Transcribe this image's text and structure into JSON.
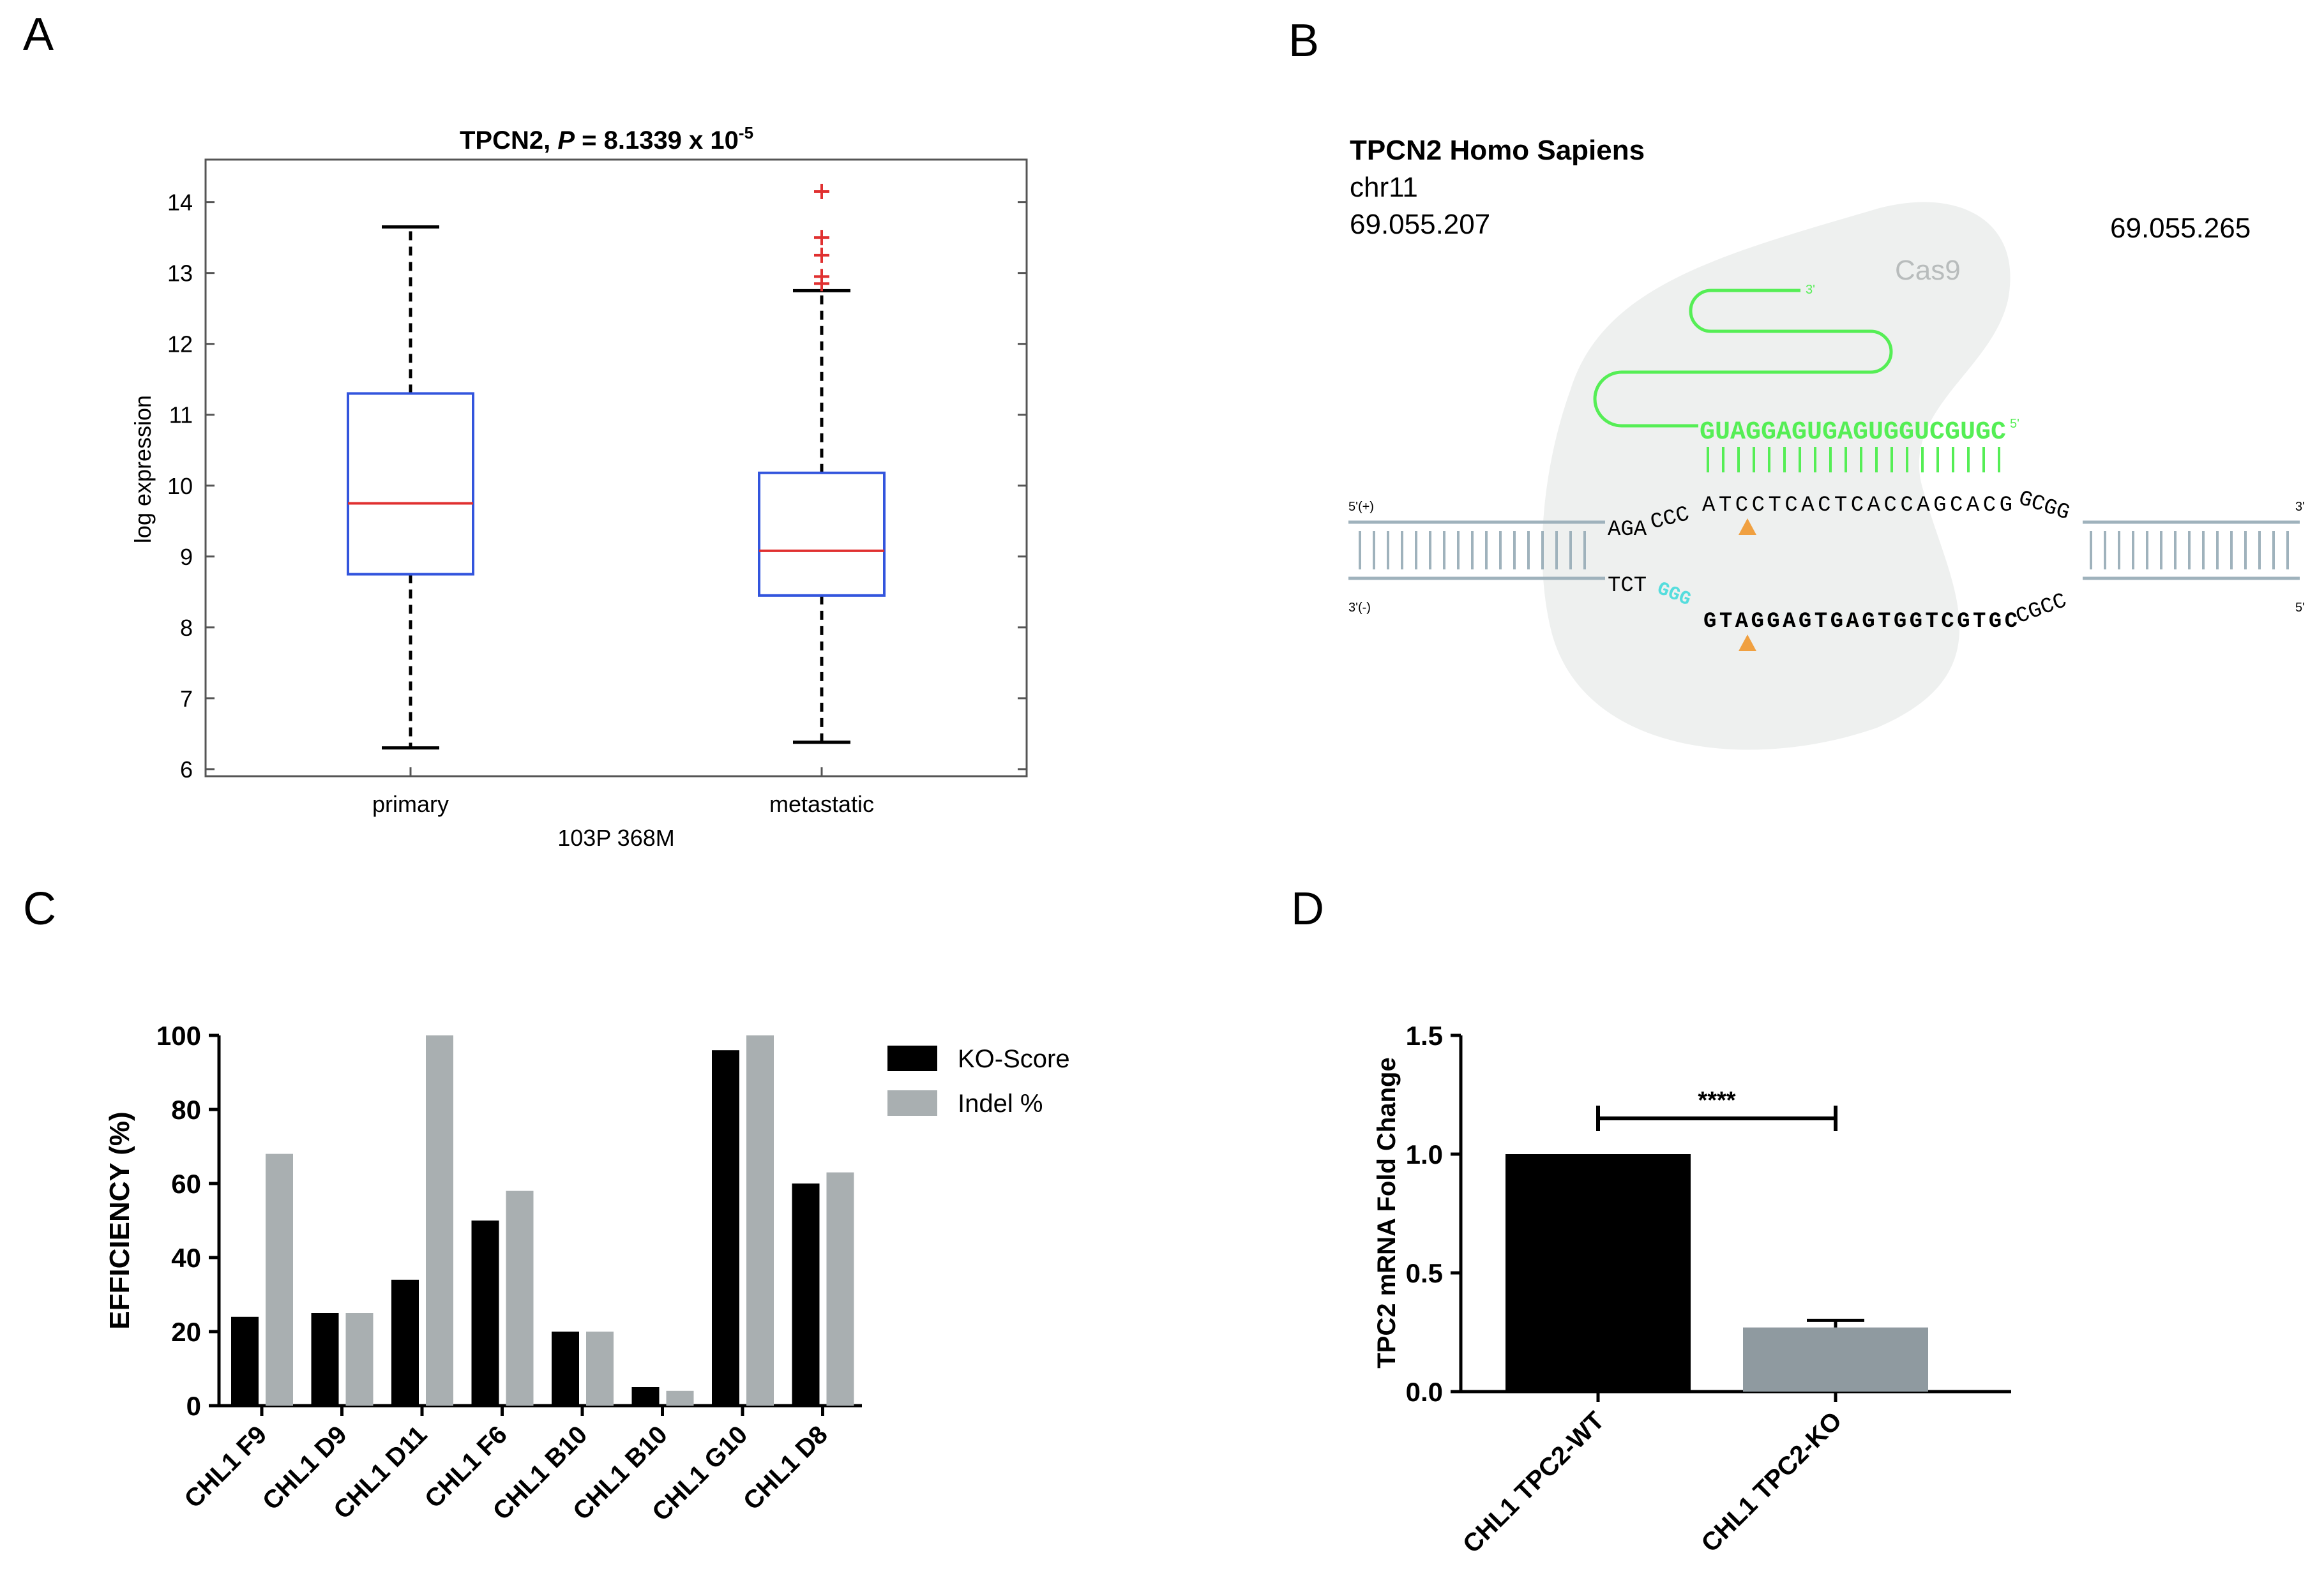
{
  "panels": {
    "a": {
      "letter": "A"
    },
    "b": {
      "letter": "B"
    },
    "c": {
      "letter": "C"
    },
    "d": {
      "letter": "D"
    }
  },
  "chart_data": [
    {
      "type": "box",
      "title_prefix": "TPCN2, ",
      "title_p": "P",
      "title_value": " = 8.1339 x 10",
      "title_exp": "-5",
      "ylabel": "log expression",
      "xlabel": "103P 368M",
      "ylim": [
        5.9,
        14.6
      ],
      "yticks": [
        6,
        7,
        8,
        9,
        10,
        11,
        12,
        13,
        14
      ],
      "categories": [
        "primary",
        "metastatic"
      ],
      "boxes": [
        {
          "name": "primary",
          "whisker_low": 6.3,
          "q1": 8.75,
          "median": 9.75,
          "q3": 11.3,
          "whisker_high": 13.65,
          "outliers": []
        },
        {
          "name": "metastatic",
          "whisker_low": 6.38,
          "q1": 8.45,
          "median": 9.08,
          "q3": 10.18,
          "whisker_high": 12.75,
          "outliers": [
            14.15,
            13.5,
            13.25,
            12.95,
            12.85
          ]
        }
      ],
      "colors": {
        "box": "#3355dd",
        "median": "#e03030",
        "outlier": "#e03030",
        "whisker": "#000000"
      }
    },
    {
      "type": "bar",
      "ylabel": "EFFICIENCY  (%)",
      "ylim": [
        0,
        100
      ],
      "yticks": [
        0,
        20,
        40,
        60,
        80,
        100
      ],
      "categories": [
        "CHL1 F9",
        "CHL1 D9",
        "CHL1 D11",
        "CHL1 F6",
        "CHL1 B10",
        "CHL1 B10",
        "CHL1 G10",
        "CHL1 D8"
      ],
      "series": [
        {
          "name": "KO-Score",
          "color": "#000000",
          "values": [
            24,
            25,
            34,
            50,
            20,
            5,
            96,
            60
          ]
        },
        {
          "name": "Indel %",
          "color": "#a9afb1",
          "values": [
            68,
            25,
            100,
            58,
            20,
            4,
            100,
            63
          ]
        }
      ],
      "legend": "top-right"
    },
    {
      "type": "bar",
      "ylabel": "TPC2 mRNA Fold Change",
      "ylim": [
        0,
        1.5
      ],
      "yticks": [
        "0.0",
        "0.5",
        "1.0",
        "1.5"
      ],
      "categories": [
        "CHL1 TPC2-WT",
        "CHL1 TPC2-KO"
      ],
      "values": [
        1.0,
        0.27
      ],
      "error": [
        0,
        0.03
      ],
      "colors": [
        "#000000",
        "#8f9aa0"
      ],
      "significance": "****"
    }
  ],
  "diagram": {
    "title": "TPCN2 Homo Sapiens",
    "chrom": "chr11",
    "pos_start": "69.055.207",
    "pos_end": "69.055.265",
    "protein": "Cas9",
    "grna_3prime": "3'",
    "grna_seq": "GUAGGAGUGAGUGGUCGUGC",
    "grna_5prime": "5'",
    "top_strand_left": "5'(+)",
    "top_strand_right": "3'",
    "bottom_strand_left": "3'(-)",
    "bottom_strand_right": "5'",
    "top_flank": "AGA",
    "top_arc_left": "CCC",
    "top_target": "ATCCTCACTCACCAGCACG",
    "top_arc_right": "GCGG",
    "bottom_flank": "TCT",
    "pam": "GGG",
    "bottom_target": "GTAGGAGTGAGTGGTCGTGC",
    "bottom_arc_right": "CGCC",
    "colors": {
      "grna": "#55ee55",
      "pam": "#55dddd",
      "cut": "#f0a040",
      "strand": "#9fb2bc",
      "blob": "#eef0ef"
    }
  }
}
